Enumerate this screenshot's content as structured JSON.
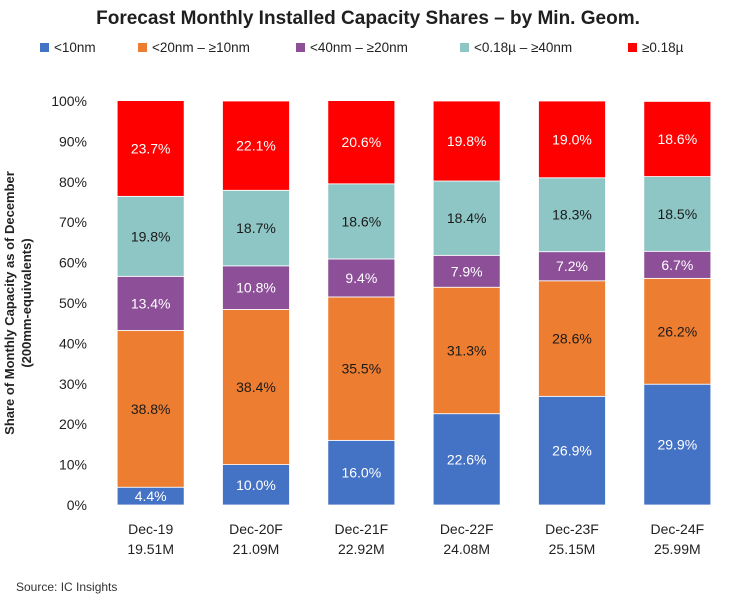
{
  "chart_data": {
    "type": "bar",
    "stacked": true,
    "title": "Forecast Monthly Installed Capacity Shares – by Min. Geom.",
    "ylabel": [
      "Share of Monthly Capacity as of December",
      "(200mm-equivalents)"
    ],
    "ylim": [
      0,
      100
    ],
    "ytick_labels": [
      "0%",
      "10%",
      "20%",
      "30%",
      "40%",
      "50%",
      "60%",
      "70%",
      "80%",
      "90%",
      "100%"
    ],
    "categories": [
      "Dec-19",
      "Dec-20F",
      "Dec-21F",
      "Dec-22F",
      "Dec-23F",
      "Dec-24F"
    ],
    "category_sublabels": [
      "19.51M",
      "21.09M",
      "22.92M",
      "24.08M",
      "25.15M",
      "25.99M"
    ],
    "legend_position": "top",
    "grid": false,
    "series": [
      {
        "name": "<10nm",
        "color": "#4472c4",
        "label_color": "#ffffff",
        "values": [
          4.4,
          10.0,
          16.0,
          22.6,
          26.9,
          29.9
        ],
        "labels": [
          "4.4%",
          "10.0%",
          "16.0%",
          "22.6%",
          "26.9%",
          "29.9%"
        ]
      },
      {
        "name": "<20nm – ≥10nm",
        "color": "#ed7d31",
        "label_color": "#1a1a1a",
        "values": [
          38.8,
          38.4,
          35.5,
          31.3,
          28.6,
          26.2
        ],
        "labels": [
          "38.8%",
          "38.4%",
          "35.5%",
          "31.3%",
          "28.6%",
          "26.2%"
        ]
      },
      {
        "name": "<40nm – ≥20nm",
        "color": "#8c4f98",
        "label_color": "#ffffff",
        "values": [
          13.4,
          10.8,
          9.4,
          7.9,
          7.2,
          6.7
        ],
        "labels": [
          "13.4%",
          "10.8%",
          "9.4%",
          "7.9%",
          "7.2%",
          "6.7%"
        ]
      },
      {
        "name": "<0.18µ – ≥40nm",
        "color": "#8ec6c5",
        "label_color": "#1a1a1a",
        "values": [
          19.8,
          18.7,
          18.6,
          18.4,
          18.3,
          18.5
        ],
        "labels": [
          "19.8%",
          "18.7%",
          "18.6%",
          "18.4%",
          "18.3%",
          "18.5%"
        ]
      },
      {
        "name": "≥0.18µ",
        "color": "#ff0000",
        "label_color": "#ffffff",
        "values": [
          23.7,
          22.1,
          20.6,
          19.8,
          19.0,
          18.6
        ],
        "labels": [
          "23.7%",
          "22.1%",
          "20.6%",
          "19.8%",
          "19.0%",
          "18.6%"
        ]
      }
    ]
  },
  "source": "Source:  IC Insights"
}
